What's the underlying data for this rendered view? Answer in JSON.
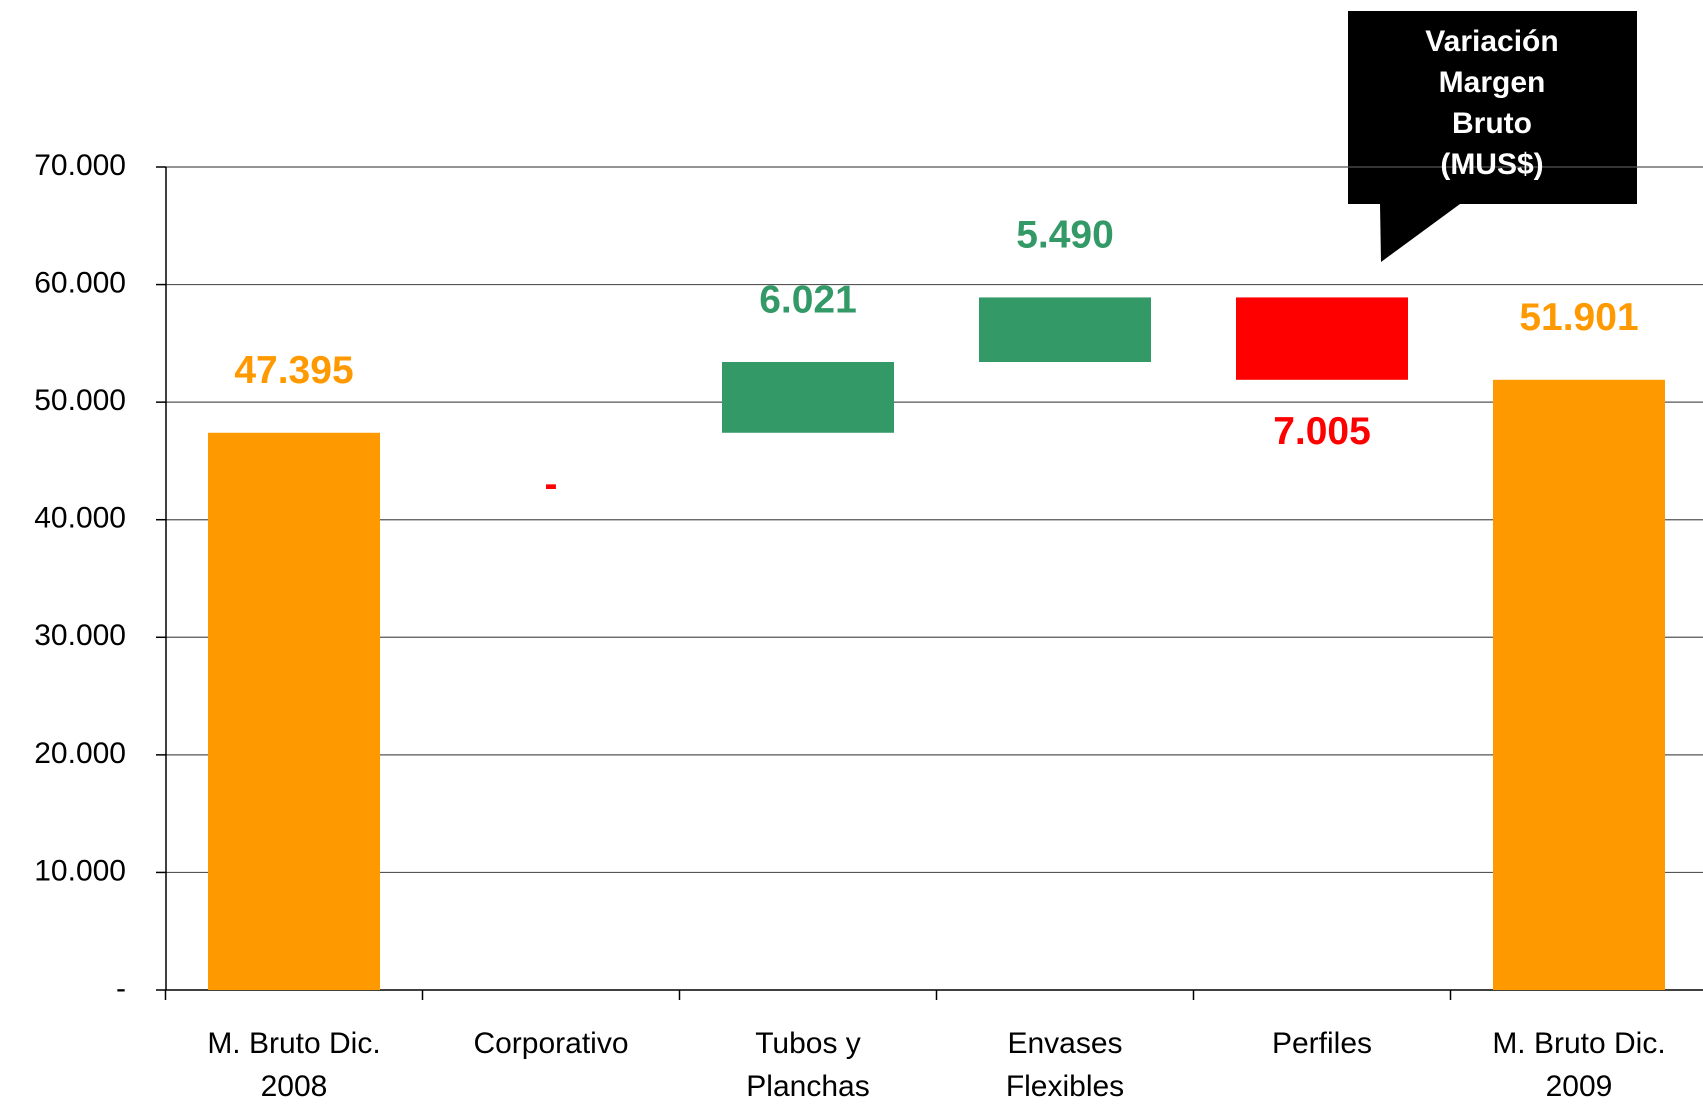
{
  "chart_data": {
    "type": "waterfall",
    "annotation": [
      "Variación",
      "Margen",
      "Bruto",
      "(MUS$)"
    ],
    "categories": [
      [
        "M. Bruto Dic.",
        "2008"
      ],
      [
        "Corporativo"
      ],
      [
        "Tubos y",
        "Planchas"
      ],
      [
        "Envases",
        "Flexibles"
      ],
      [
        "Perfiles"
      ],
      [
        "M. Bruto Dic.",
        "2009"
      ]
    ],
    "values": [
      47395,
      0,
      6021,
      5490,
      -7005,
      51901
    ],
    "value_labels": [
      "47.395",
      "-",
      "6.021",
      "5.490",
      "7.005",
      "51.901"
    ],
    "colors": [
      "#ff9900",
      "#ff0000",
      "#339966",
      "#339966",
      "#ff0000",
      "#ff9900"
    ],
    "ylim": [
      0,
      70000
    ],
    "yticks": [
      {
        "value": 0,
        "label": "-"
      },
      {
        "value": 10000,
        "label": "10.000"
      },
      {
        "value": 20000,
        "label": "20.000"
      },
      {
        "value": 30000,
        "label": "30.000"
      },
      {
        "value": 40000,
        "label": "40.000"
      },
      {
        "value": 50000,
        "label": "50.000"
      },
      {
        "value": 60000,
        "label": "60.000"
      },
      {
        "value": 70000,
        "label": "70.000"
      }
    ],
    "grid": true
  }
}
